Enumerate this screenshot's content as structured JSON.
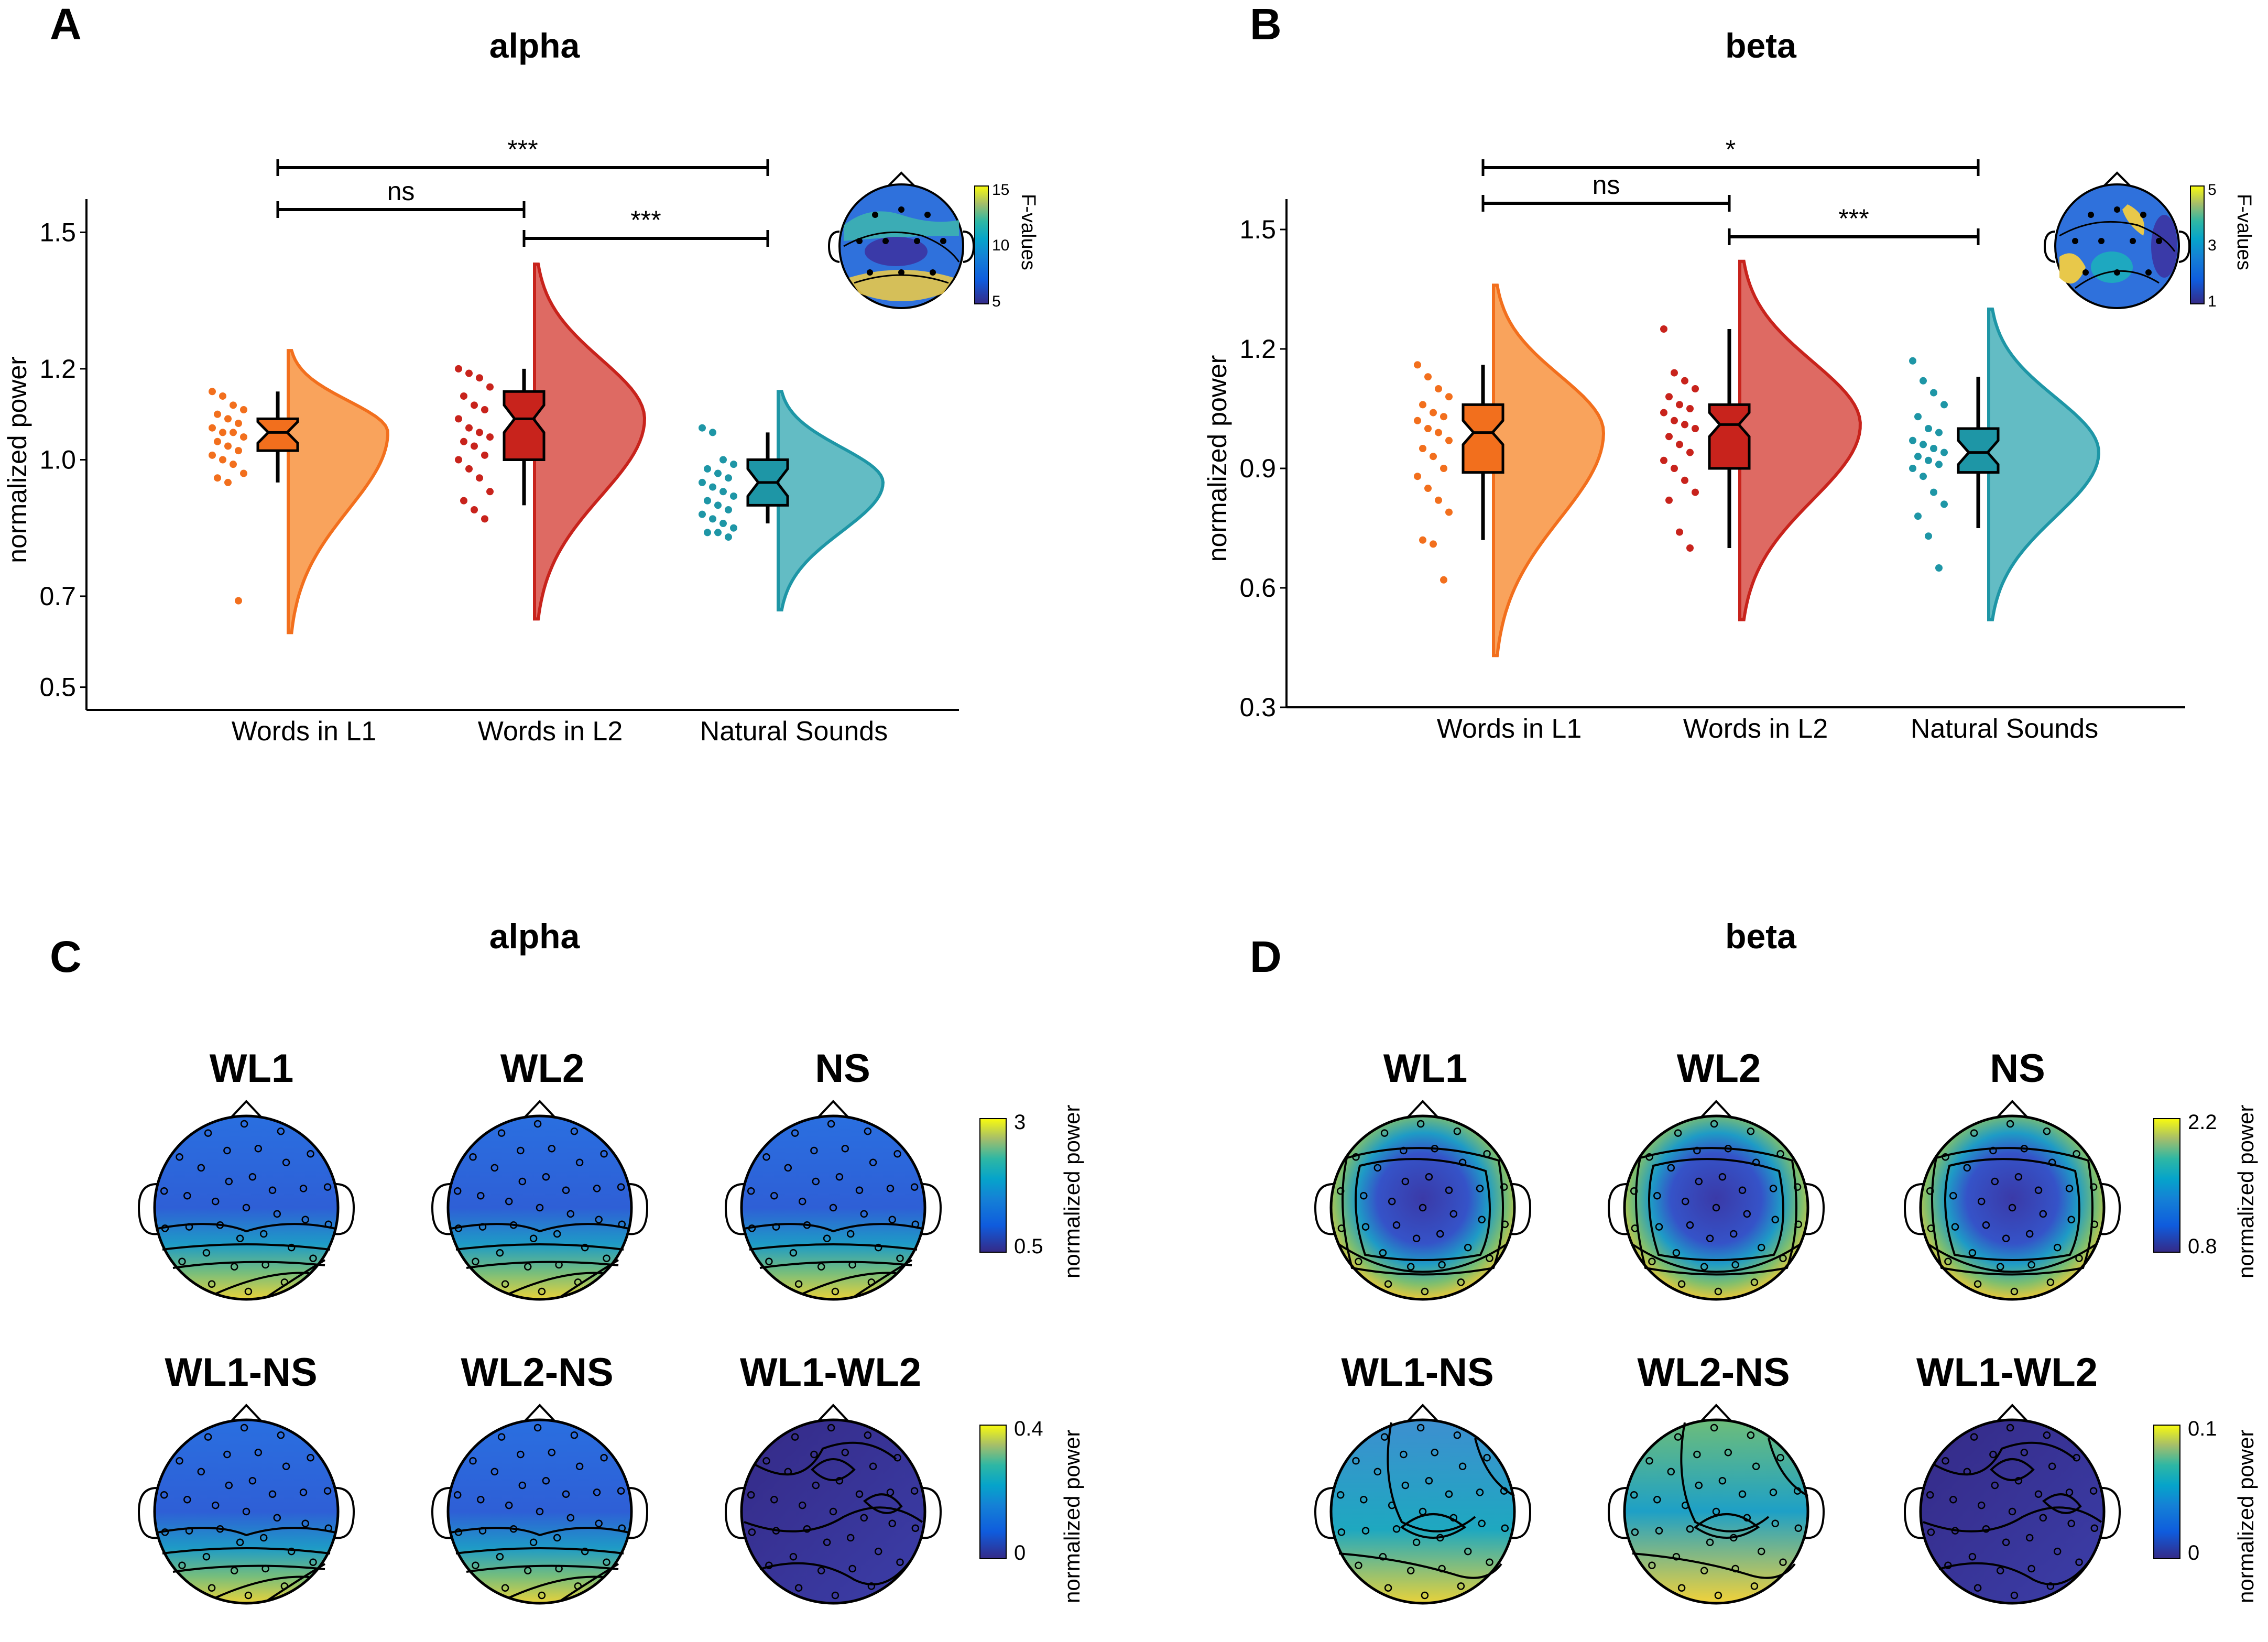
{
  "figure": {
    "panels": {
      "A": {
        "letter": "A",
        "title": "alpha"
      },
      "B": {
        "letter": "B",
        "title": "beta"
      },
      "C": {
        "letter": "C",
        "title": "alpha"
      },
      "D": {
        "letter": "D",
        "title": "beta"
      }
    },
    "colors": {
      "WL1": "#f26f1d",
      "WL2": "#c8231c",
      "NS": "#1e96a6",
      "WL1_fill": "#f9a35c",
      "WL2_fill": "#de6a63",
      "NS_fill": "#63bcc4"
    },
    "topo": {
      "row1_titles": [
        "WL1",
        "WL2",
        "NS"
      ],
      "row2_titles": [
        "WL1-NS",
        "WL2-NS",
        "WL1-WL2"
      ],
      "cb_label": "normalized power",
      "C_cb1": [
        "3",
        "0.5"
      ],
      "C_cb2": [
        "0.4",
        "0"
      ],
      "D_cb1": [
        "2.2",
        "0.8"
      ],
      "D_cb2": [
        "0.1",
        "0"
      ]
    },
    "mini": {
      "label": "F-values",
      "A_ticks": [
        "15",
        "10",
        "5"
      ],
      "B_ticks": [
        "5",
        "3",
        "1"
      ]
    }
  },
  "chart_data": [
    {
      "type": "raincloud",
      "panel": "A",
      "title": "alpha",
      "xlabel": "",
      "ylabel": "normalized power",
      "ylim": [
        0.45,
        1.55
      ],
      "yticks": [
        "0.5",
        "0.7",
        "1.0",
        "1.2",
        "1.5"
      ],
      "categories": [
        "Words in L1",
        "Words in L2",
        "Natural Sounds"
      ],
      "boxes": [
        {
          "name": "Words in L1",
          "q1": 1.02,
          "median": 1.06,
          "q3": 1.09,
          "whisker_low": 0.95,
          "whisker_high": 1.15
        },
        {
          "name": "Words in L2",
          "q1": 1.0,
          "median": 1.09,
          "q3": 1.15,
          "whisker_low": 0.9,
          "whisker_high": 1.2
        },
        {
          "name": "Natural Sounds",
          "q1": 0.9,
          "median": 0.95,
          "q3": 1.0,
          "whisker_low": 0.86,
          "whisker_high": 1.06
        }
      ],
      "points": [
        [
          1.15,
          1.14,
          1.12,
          1.11,
          1.1,
          1.09,
          1.08,
          1.07,
          1.06,
          1.06,
          1.05,
          1.04,
          1.03,
          1.02,
          1.01,
          1.0,
          0.99,
          0.97,
          0.96,
          0.95,
          0.69
        ],
        [
          1.2,
          1.19,
          1.18,
          1.16,
          1.14,
          1.12,
          1.11,
          1.09,
          1.07,
          1.06,
          1.05,
          1.04,
          1.03,
          1.01,
          1.0,
          0.98,
          0.96,
          0.93,
          0.91,
          0.89,
          0.87
        ],
        [
          1.07,
          1.06,
          1.0,
          0.99,
          0.98,
          0.97,
          0.96,
          0.95,
          0.94,
          0.93,
          0.92,
          0.91,
          0.9,
          0.89,
          0.88,
          0.87,
          0.86,
          0.85,
          0.84,
          0.84,
          0.83
        ]
      ],
      "significance": [
        {
          "pair": [
            "Words in L1",
            "Words in L2"
          ],
          "label": "ns"
        },
        {
          "pair": [
            "Words in L2",
            "Natural Sounds"
          ],
          "label": "***"
        },
        {
          "pair": [
            "Words in L1",
            "Natural Sounds"
          ],
          "label": "***"
        }
      ]
    },
    {
      "type": "raincloud",
      "panel": "B",
      "title": "beta",
      "xlabel": "",
      "ylabel": "normalized power",
      "ylim": [
        0.3,
        1.55
      ],
      "yticks": [
        "0.3",
        "0.6",
        "0.9",
        "1.2",
        "1.5"
      ],
      "categories": [
        "Words in L1",
        "Words in L2",
        "Natural Sounds"
      ],
      "boxes": [
        {
          "name": "Words in L1",
          "q1": 0.89,
          "median": 0.99,
          "q3": 1.06,
          "whisker_low": 0.72,
          "whisker_high": 1.16
        },
        {
          "name": "Words in L2",
          "q1": 0.9,
          "median": 1.01,
          "q3": 1.06,
          "whisker_low": 0.7,
          "whisker_high": 1.25
        },
        {
          "name": "Natural Sounds",
          "q1": 0.89,
          "median": 0.94,
          "q3": 1.0,
          "whisker_low": 0.75,
          "whisker_high": 1.13
        }
      ],
      "points": [
        [
          1.16,
          1.13,
          1.1,
          1.08,
          1.06,
          1.04,
          1.03,
          1.02,
          1.0,
          0.99,
          0.97,
          0.95,
          0.93,
          0.9,
          0.88,
          0.85,
          0.82,
          0.79,
          0.72,
          0.71,
          0.62
        ],
        [
          1.25,
          1.14,
          1.12,
          1.1,
          1.08,
          1.06,
          1.05,
          1.04,
          1.02,
          1.01,
          1.0,
          0.98,
          0.96,
          0.94,
          0.92,
          0.9,
          0.87,
          0.84,
          0.82,
          0.74,
          0.7
        ],
        [
          1.17,
          1.12,
          1.09,
          1.06,
          1.03,
          1.0,
          0.99,
          0.97,
          0.96,
          0.95,
          0.94,
          0.93,
          0.92,
          0.91,
          0.9,
          0.88,
          0.84,
          0.81,
          0.78,
          0.73,
          0.65
        ]
      ],
      "significance": [
        {
          "pair": [
            "Words in L1",
            "Words in L2"
          ],
          "label": "ns"
        },
        {
          "pair": [
            "Words in L2",
            "Natural Sounds"
          ],
          "label": "***"
        },
        {
          "pair": [
            "Words in L1",
            "Natural Sounds"
          ],
          "label": "*"
        }
      ]
    }
  ]
}
